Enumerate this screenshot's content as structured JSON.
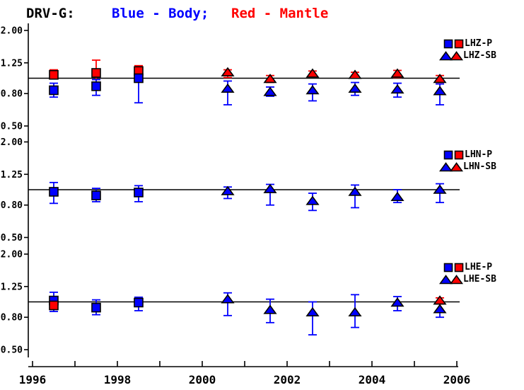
{
  "title": {
    "station": "DRV-G:",
    "body_label": "Blue - Body;",
    "mantle_label": "Red - Mantle"
  },
  "colors": {
    "body": "#0000FF",
    "mantle": "#FF0000",
    "axis": "#000000",
    "background": "#FFFFFF"
  },
  "x_axis": {
    "label_years": [
      1996,
      1998,
      2000,
      2002,
      2004,
      2006
    ],
    "labels": [
      "1996",
      "1998",
      "2000",
      "2002",
      "2004",
      "2006"
    ],
    "minor_tick_every_years": 1,
    "range": [
      1996,
      2006
    ]
  },
  "y_axis": {
    "scale": "log",
    "tick_labels": [
      "2.00",
      "1.25",
      "0.80",
      "0.50"
    ],
    "tick_values": [
      2.0,
      1.25,
      0.8,
      0.5
    ],
    "range": [
      0.5,
      2.0
    ],
    "reference_value": 1.0
  },
  "chart_data": [
    {
      "type": "scatter",
      "channel": "LHZ",
      "legend": {
        "p": "LHZ-P",
        "sb": "LHZ-SB"
      },
      "series": [
        {
          "name": "LHZ-P mantle",
          "marker": "square",
          "color": "mantle",
          "points": [
            {
              "year": 1996.5,
              "value": 1.05,
              "lo": 1.0,
              "hi": 1.13
            },
            {
              "year": 1997.5,
              "value": 1.08,
              "lo": 0.98,
              "hi": 1.3
            },
            {
              "year": 1998.5,
              "value": 1.11,
              "lo": 0.99,
              "hi": 1.2
            }
          ]
        },
        {
          "name": "LHZ-P body",
          "marker": "square",
          "color": "body",
          "points": [
            {
              "year": 1996.5,
              "value": 0.84,
              "lo": 0.76,
              "hi": 0.93
            },
            {
              "year": 1997.5,
              "value": 0.89,
              "lo": 0.78,
              "hi": 0.98
            },
            {
              "year": 1998.5,
              "value": 1.0,
              "lo": 0.7,
              "hi": 1.05
            }
          ]
        },
        {
          "name": "LHZ-SB mantle",
          "marker": "triangle",
          "color": "mantle",
          "points": [
            {
              "year": 2000.6,
              "value": 1.09,
              "lo": 1.01,
              "hi": 1.13
            },
            {
              "year": 2001.6,
              "value": 0.99,
              "lo": 0.94,
              "hi": 1.04
            },
            {
              "year": 2002.6,
              "value": 1.07,
              "lo": 1.02,
              "hi": 1.11
            },
            {
              "year": 2003.6,
              "value": 1.05,
              "lo": 1.0,
              "hi": 1.09
            },
            {
              "year": 2004.6,
              "value": 1.07,
              "lo": 1.01,
              "hi": 1.12
            },
            {
              "year": 2005.6,
              "value": 0.99,
              "lo": 0.94,
              "hi": 1.04
            }
          ]
        },
        {
          "name": "LHZ-SB body",
          "marker": "triangle",
          "color": "body",
          "points": [
            {
              "year": 2000.6,
              "value": 0.86,
              "lo": 0.68,
              "hi": 0.96
            },
            {
              "year": 2001.6,
              "value": 0.82,
              "lo": 0.77,
              "hi": 0.88
            },
            {
              "year": 2002.6,
              "value": 0.84,
              "lo": 0.72,
              "hi": 0.92
            },
            {
              "year": 2003.6,
              "value": 0.86,
              "lo": 0.78,
              "hi": 0.94
            },
            {
              "year": 2004.6,
              "value": 0.85,
              "lo": 0.76,
              "hi": 0.93
            },
            {
              "year": 2005.6,
              "value": 0.83,
              "lo": 0.68,
              "hi": 0.92
            }
          ]
        }
      ]
    },
    {
      "type": "scatter",
      "channel": "LHN",
      "legend": {
        "p": "LHN-P",
        "sb": "LHN-SB"
      },
      "series": [
        {
          "name": "LHN-P body",
          "marker": "square",
          "color": "body",
          "points": [
            {
              "year": 1996.5,
              "value": 0.97,
              "lo": 0.82,
              "hi": 1.11
            },
            {
              "year": 1997.5,
              "value": 0.92,
              "lo": 0.84,
              "hi": 1.02
            },
            {
              "year": 1998.5,
              "value": 0.96,
              "lo": 0.84,
              "hi": 1.06
            }
          ]
        },
        {
          "name": "LHN-SB body",
          "marker": "triangle",
          "color": "body",
          "points": [
            {
              "year": 2000.6,
              "value": 0.98,
              "lo": 0.88,
              "hi": 1.04
            },
            {
              "year": 2001.6,
              "value": 1.01,
              "lo": 0.8,
              "hi": 1.08
            },
            {
              "year": 2002.6,
              "value": 0.85,
              "lo": 0.74,
              "hi": 0.95
            },
            {
              "year": 2003.6,
              "value": 0.97,
              "lo": 0.77,
              "hi": 1.07
            },
            {
              "year": 2004.6,
              "value": 0.9,
              "lo": 0.83,
              "hi": 1.0
            },
            {
              "year": 2005.6,
              "value": 1.0,
              "lo": 0.83,
              "hi": 1.09
            }
          ]
        }
      ]
    },
    {
      "type": "scatter",
      "channel": "LHE",
      "legend": {
        "p": "LHE-P",
        "sb": "LHE-SB"
      },
      "series": [
        {
          "name": "LHE-P body",
          "marker": "square",
          "color": "body",
          "points": [
            {
              "year": 1996.5,
              "value": 1.02,
              "lo": 0.87,
              "hi": 1.15
            },
            {
              "year": 1997.5,
              "value": 0.92,
              "lo": 0.83,
              "hi": 1.03
            },
            {
              "year": 1998.5,
              "value": 0.99,
              "lo": 0.88,
              "hi": 1.07
            }
          ]
        },
        {
          "name": "LHE-P mantle",
          "marker": "square",
          "color": "mantle",
          "points": [
            {
              "year": 1996.5,
              "value": 0.95,
              "lo": 0.9,
              "hi": 1.0
            }
          ]
        },
        {
          "name": "LHE-SB body",
          "marker": "triangle",
          "color": "body",
          "points": [
            {
              "year": 2000.6,
              "value": 1.04,
              "lo": 0.82,
              "hi": 1.14
            },
            {
              "year": 2001.6,
              "value": 0.89,
              "lo": 0.74,
              "hi": 1.04
            },
            {
              "year": 2002.6,
              "value": 0.86,
              "lo": 0.62,
              "hi": 1.0
            },
            {
              "year": 2003.6,
              "value": 0.86,
              "lo": 0.69,
              "hi": 1.11
            },
            {
              "year": 2004.6,
              "value": 0.99,
              "lo": 0.88,
              "hi": 1.08
            },
            {
              "year": 2005.6,
              "value": 0.9,
              "lo": 0.8,
              "hi": 1.0
            }
          ]
        },
        {
          "name": "LHE-SB mantle",
          "marker": "triangle",
          "color": "mantle",
          "points": [
            {
              "year": 2005.6,
              "value": 1.02,
              "lo": 0.97,
              "hi": 1.06
            }
          ]
        }
      ]
    }
  ]
}
